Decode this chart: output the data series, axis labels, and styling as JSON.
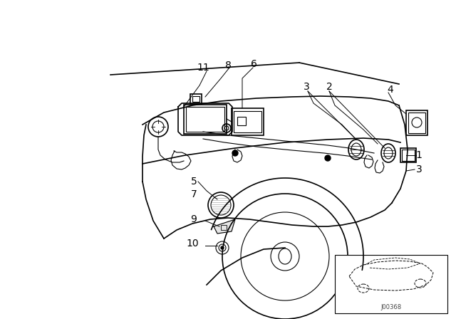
{
  "bg_color": "#ffffff",
  "line_color": "#000000",
  "figure_size": [
    6.4,
    4.48
  ],
  "dpi": 100,
  "inset_text": "J00368"
}
